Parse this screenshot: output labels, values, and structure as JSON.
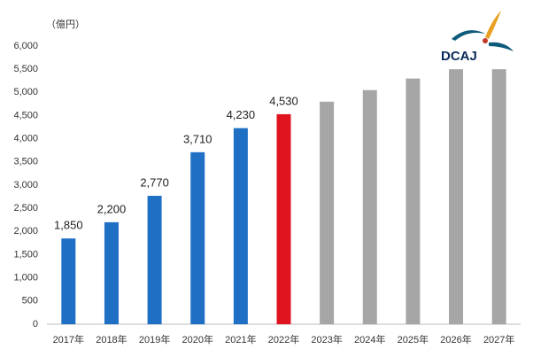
{
  "chart_data": {
    "type": "bar",
    "unit_label": "（億円）",
    "logo": "DCAJ",
    "categories": [
      "2017年",
      "2018年",
      "2019年",
      "2020年",
      "2021年",
      "2022年",
      "2023年",
      "2024年",
      "2025年",
      "2026年",
      "2027年"
    ],
    "values": [
      1850,
      2200,
      2770,
      3710,
      4230,
      4530,
      4800,
      5050,
      5300,
      5500,
      5500
    ],
    "value_labels": [
      "1,850",
      "2,200",
      "2,770",
      "3,710",
      "4,230",
      "4,530",
      null,
      null,
      null,
      null,
      null
    ],
    "colors": [
      "#1f6fc5",
      "#1f6fc5",
      "#1f6fc5",
      "#1f6fc5",
      "#1f6fc5",
      "#e0141e",
      "#a6a6a6",
      "#a6a6a6",
      "#a6a6a6",
      "#a6a6a6",
      "#a6a6a6"
    ],
    "ylim": [
      0,
      6000
    ],
    "yticks": [
      0,
      500,
      {
        "value": 1000,
        "label": "1,000"
      },
      {
        "value": 1500,
        "label": "1,500"
      },
      {
        "value": 2000,
        "label": "2,000"
      },
      {
        "value": 2500,
        "label": "2,500"
      },
      {
        "value": 3000,
        "label": "3,000"
      },
      {
        "value": 3500,
        "label": "3,500"
      },
      {
        "value": 4000,
        "label": "4,000"
      },
      {
        "value": 4500,
        "label": "4,500"
      },
      {
        "value": 5000,
        "label": "5,000"
      },
      {
        "value": 5500,
        "label": "5,500"
      },
      {
        "value": 6000,
        "label": "6,000"
      }
    ],
    "grid": false
  }
}
